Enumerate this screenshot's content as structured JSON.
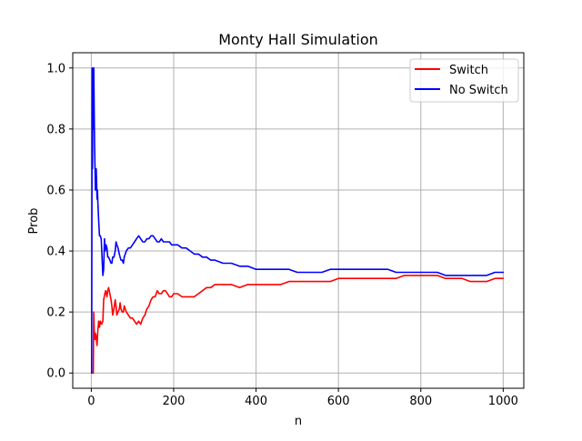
{
  "chart_data": {
    "type": "line",
    "title": "Monty Hall Simulation",
    "xlabel": "n",
    "ylabel": "Prob",
    "xlim": [
      -45,
      1050
    ],
    "ylim": [
      -0.05,
      1.05
    ],
    "xticks": [
      0,
      200,
      400,
      600,
      800,
      1000
    ],
    "xtick_labels": [
      "0",
      "200",
      "400",
      "600",
      "800",
      "1000"
    ],
    "yticks": [
      0.0,
      0.2,
      0.4,
      0.6,
      0.8,
      1.0
    ],
    "ytick_labels": [
      "0.0",
      "0.2",
      "0.4",
      "0.6",
      "0.8",
      "1.0"
    ],
    "grid": true,
    "legend_position": "top-right",
    "series": [
      {
        "name": "Switch",
        "color": "#ff0000",
        "x": [
          1,
          3,
          5,
          6,
          7,
          9,
          10,
          12,
          14,
          16,
          18,
          20,
          22,
          25,
          28,
          30,
          33,
          35,
          38,
          40,
          42,
          45,
          48,
          50,
          52,
          55,
          58,
          60,
          62,
          65,
          68,
          70,
          72,
          75,
          78,
          80,
          85,
          90,
          95,
          100,
          105,
          110,
          115,
          120,
          125,
          130,
          135,
          140,
          145,
          150,
          155,
          160,
          165,
          170,
          175,
          180,
          185,
          190,
          195,
          200,
          210,
          220,
          230,
          240,
          250,
          260,
          270,
          280,
          290,
          300,
          320,
          340,
          360,
          380,
          400,
          420,
          440,
          460,
          480,
          500,
          520,
          540,
          560,
          580,
          600,
          620,
          640,
          660,
          680,
          700,
          720,
          740,
          760,
          780,
          800,
          820,
          840,
          860,
          880,
          900,
          920,
          940,
          960,
          980,
          1000
        ],
        "values": [
          0.0,
          0.0,
          0.0,
          0.2,
          0.14,
          0.11,
          0.13,
          0.12,
          0.09,
          0.14,
          0.17,
          0.15,
          0.17,
          0.16,
          0.17,
          0.24,
          0.26,
          0.27,
          0.25,
          0.27,
          0.28,
          0.26,
          0.24,
          0.22,
          0.19,
          0.21,
          0.24,
          0.22,
          0.19,
          0.2,
          0.21,
          0.23,
          0.21,
          0.2,
          0.2,
          0.22,
          0.2,
          0.19,
          0.18,
          0.18,
          0.17,
          0.16,
          0.17,
          0.16,
          0.18,
          0.19,
          0.21,
          0.22,
          0.24,
          0.25,
          0.25,
          0.27,
          0.26,
          0.26,
          0.27,
          0.27,
          0.26,
          0.25,
          0.25,
          0.26,
          0.26,
          0.25,
          0.25,
          0.25,
          0.25,
          0.26,
          0.27,
          0.28,
          0.28,
          0.29,
          0.29,
          0.29,
          0.28,
          0.29,
          0.29,
          0.29,
          0.29,
          0.29,
          0.3,
          0.3,
          0.3,
          0.3,
          0.3,
          0.3,
          0.31,
          0.31,
          0.31,
          0.31,
          0.31,
          0.31,
          0.31,
          0.31,
          0.32,
          0.32,
          0.32,
          0.32,
          0.32,
          0.31,
          0.31,
          0.31,
          0.3,
          0.3,
          0.3,
          0.31,
          0.31
        ]
      },
      {
        "name": "No Switch",
        "color": "#0000ff",
        "x": [
          1,
          2,
          3,
          4,
          5,
          6,
          7,
          8,
          9,
          10,
          11,
          12,
          13,
          14,
          15,
          16,
          18,
          20,
          22,
          24,
          26,
          28,
          30,
          32,
          34,
          36,
          38,
          40,
          42,
          45,
          48,
          50,
          52,
          55,
          58,
          60,
          62,
          65,
          68,
          70,
          72,
          75,
          78,
          80,
          85,
          90,
          95,
          100,
          105,
          110,
          115,
          120,
          125,
          130,
          135,
          140,
          145,
          150,
          155,
          160,
          165,
          170,
          175,
          180,
          185,
          190,
          195,
          200,
          210,
          220,
          230,
          240,
          250,
          260,
          270,
          280,
          290,
          300,
          320,
          340,
          360,
          380,
          400,
          420,
          440,
          460,
          480,
          500,
          520,
          540,
          560,
          580,
          600,
          620,
          640,
          660,
          680,
          700,
          720,
          740,
          760,
          780,
          800,
          820,
          840,
          860,
          880,
          900,
          920,
          940,
          960,
          980,
          1000
        ],
        "values": [
          0.0,
          1.0,
          0.67,
          1.0,
          0.8,
          1.0,
          0.86,
          0.75,
          0.67,
          0.6,
          0.64,
          0.67,
          0.62,
          0.57,
          0.6,
          0.56,
          0.5,
          0.45,
          0.45,
          0.44,
          0.38,
          0.32,
          0.34,
          0.44,
          0.4,
          0.42,
          0.41,
          0.38,
          0.38,
          0.37,
          0.36,
          0.36,
          0.38,
          0.38,
          0.4,
          0.43,
          0.42,
          0.41,
          0.39,
          0.38,
          0.37,
          0.37,
          0.36,
          0.38,
          0.4,
          0.41,
          0.41,
          0.42,
          0.43,
          0.44,
          0.45,
          0.44,
          0.43,
          0.43,
          0.44,
          0.44,
          0.45,
          0.45,
          0.44,
          0.43,
          0.43,
          0.44,
          0.43,
          0.43,
          0.43,
          0.43,
          0.42,
          0.42,
          0.42,
          0.41,
          0.41,
          0.4,
          0.39,
          0.39,
          0.38,
          0.38,
          0.37,
          0.37,
          0.36,
          0.36,
          0.35,
          0.35,
          0.34,
          0.34,
          0.34,
          0.34,
          0.34,
          0.33,
          0.33,
          0.33,
          0.33,
          0.34,
          0.34,
          0.34,
          0.34,
          0.34,
          0.34,
          0.34,
          0.34,
          0.33,
          0.33,
          0.33,
          0.33,
          0.33,
          0.33,
          0.32,
          0.32,
          0.32,
          0.32,
          0.32,
          0.32,
          0.33,
          0.33
        ]
      }
    ]
  }
}
